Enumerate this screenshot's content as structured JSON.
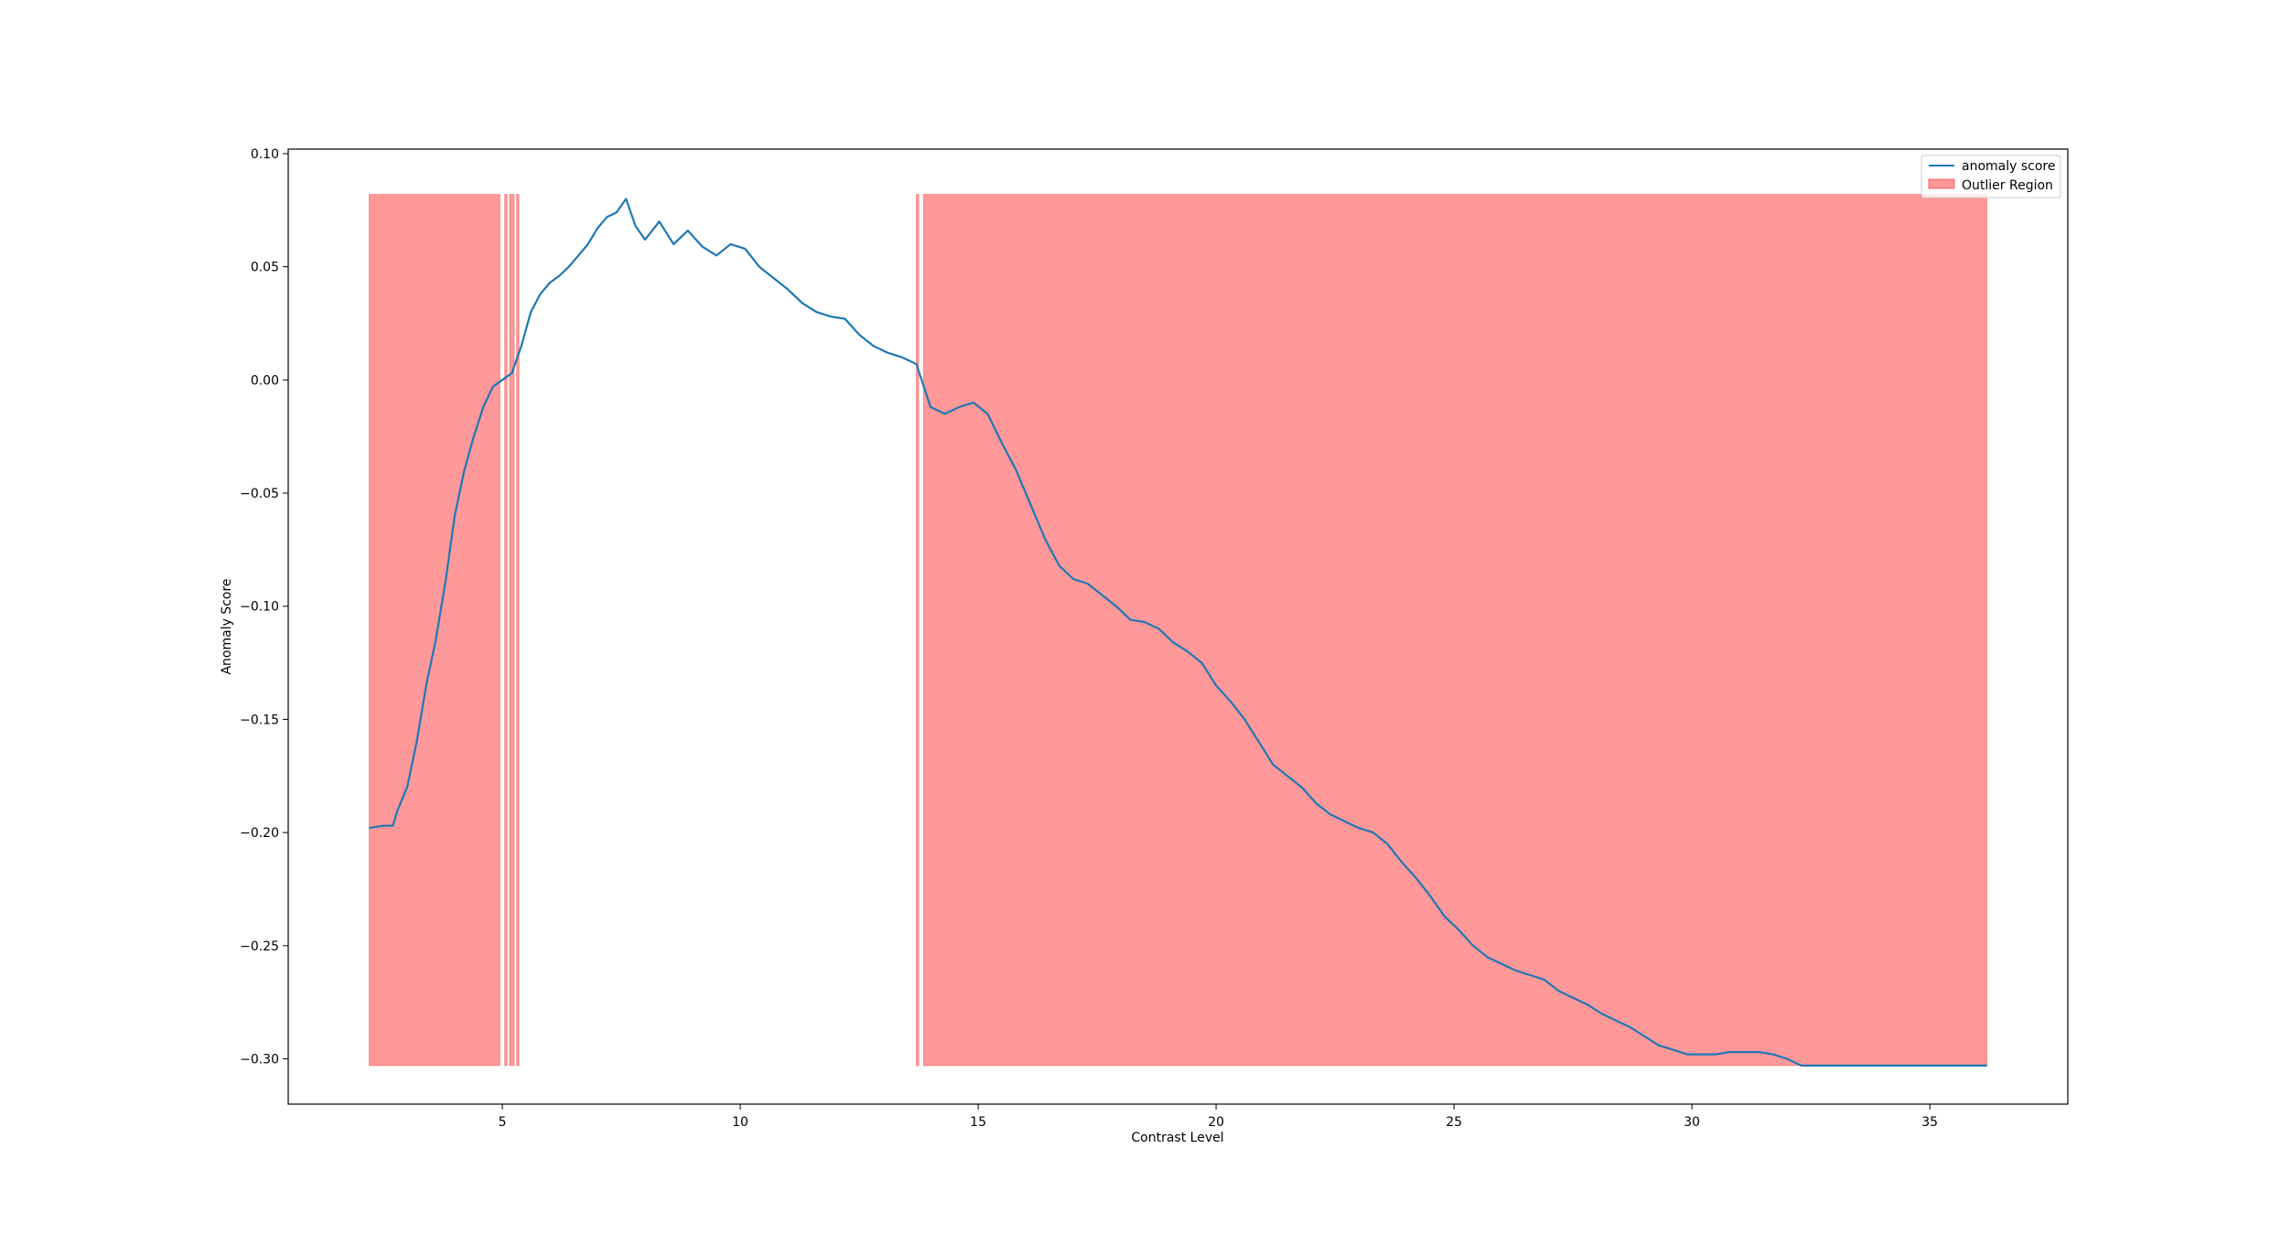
{
  "chart_data": {
    "type": "line",
    "title": "",
    "xlabel": "Contrast Level",
    "ylabel": "Anomaly Score",
    "xlim": [
      0.5,
      37.9
    ],
    "ylim": [
      -0.32,
      0.102
    ],
    "xticks": [
      5,
      10,
      15,
      20,
      25,
      30,
      35
    ],
    "xtick_labels": [
      "5",
      "10",
      "15",
      "20",
      "25",
      "30",
      "35"
    ],
    "yticks": [
      0.1,
      0.05,
      0.0,
      -0.05,
      -0.1,
      -0.15,
      -0.2,
      -0.25,
      -0.3
    ],
    "ytick_labels": [
      "0.10",
      "0.05",
      "0.00",
      "−0.05",
      "−0.10",
      "−0.15",
      "−0.20",
      "−0.25",
      "−0.30"
    ],
    "grid": false,
    "legend_position": "top-right",
    "colors": {
      "line": "#1f77b4",
      "region_fill": "#ff0000",
      "region_opacity": 0.4
    },
    "series": [
      {
        "name": "anomaly score",
        "x": [
          2.2,
          2.5,
          2.7,
          2.8,
          3.0,
          3.2,
          3.4,
          3.6,
          3.8,
          4.0,
          4.2,
          4.4,
          4.6,
          4.8,
          5.0,
          5.2,
          5.4,
          5.6,
          5.8,
          6.0,
          6.2,
          6.4,
          6.6,
          6.8,
          7.0,
          7.2,
          7.4,
          7.6,
          7.8,
          8.0,
          8.3,
          8.6,
          8.9,
          9.2,
          9.5,
          9.8,
          10.1,
          10.4,
          10.7,
          11.0,
          11.3,
          11.6,
          11.9,
          12.2,
          12.5,
          12.8,
          13.1,
          13.4,
          13.7,
          14.0,
          14.3,
          14.6,
          14.9,
          15.2,
          15.5,
          15.8,
          16.1,
          16.4,
          16.7,
          17.0,
          17.3,
          17.6,
          17.9,
          18.2,
          18.5,
          18.8,
          19.1,
          19.4,
          19.7,
          20.0,
          20.3,
          20.6,
          20.9,
          21.2,
          21.5,
          21.8,
          22.1,
          22.4,
          22.7,
          23.0,
          23.3,
          23.6,
          23.9,
          24.2,
          24.5,
          24.8,
          25.1,
          25.4,
          25.7,
          26.0,
          26.3,
          26.6,
          26.9,
          27.2,
          27.5,
          27.8,
          28.1,
          28.4,
          28.7,
          29.0,
          29.3,
          29.6,
          29.9,
          30.2,
          30.5,
          30.8,
          31.1,
          31.4,
          31.7,
          32.0,
          32.3,
          33.0,
          34.0,
          35.0,
          36.2
        ],
        "y": [
          -0.198,
          -0.197,
          -0.197,
          -0.19,
          -0.18,
          -0.16,
          -0.135,
          -0.115,
          -0.09,
          -0.06,
          -0.04,
          -0.025,
          -0.012,
          -0.003,
          0.0,
          0.003,
          0.015,
          0.03,
          0.038,
          0.043,
          0.046,
          0.05,
          0.055,
          0.06,
          0.067,
          0.072,
          0.074,
          0.08,
          0.068,
          0.062,
          0.07,
          0.06,
          0.066,
          0.059,
          0.055,
          0.06,
          0.058,
          0.05,
          0.045,
          0.04,
          0.034,
          0.03,
          0.028,
          0.027,
          0.02,
          0.015,
          0.012,
          0.01,
          0.007,
          -0.012,
          -0.015,
          -0.012,
          -0.01,
          -0.015,
          -0.028,
          -0.04,
          -0.055,
          -0.07,
          -0.082,
          -0.088,
          -0.09,
          -0.095,
          -0.1,
          -0.106,
          -0.107,
          -0.11,
          -0.116,
          -0.12,
          -0.125,
          -0.135,
          -0.142,
          -0.15,
          -0.16,
          -0.17,
          -0.175,
          -0.18,
          -0.187,
          -0.192,
          -0.195,
          -0.198,
          -0.2,
          -0.205,
          -0.213,
          -0.22,
          -0.228,
          -0.237,
          -0.243,
          -0.25,
          -0.255,
          -0.258,
          -0.261,
          -0.263,
          -0.265,
          -0.27,
          -0.273,
          -0.276,
          -0.28,
          -0.283,
          -0.286,
          -0.29,
          -0.294,
          -0.296,
          -0.298,
          -0.298,
          -0.298,
          -0.297,
          -0.297,
          -0.297,
          -0.298,
          -0.3,
          -0.303,
          -0.303,
          -0.303,
          -0.303,
          -0.303
        ]
      }
    ],
    "outlier_regions": {
      "name": "Outlier Region",
      "y_range": [
        -0.303,
        0.082
      ],
      "x_ranges": [
        [
          2.2,
          4.95
        ],
        [
          5.05,
          5.1
        ],
        [
          5.15,
          5.25
        ],
        [
          5.3,
          5.35
        ],
        [
          13.7,
          13.75
        ],
        [
          13.85,
          36.2
        ]
      ]
    },
    "legend": [
      "anomaly score",
      "Outlier Region"
    ]
  }
}
